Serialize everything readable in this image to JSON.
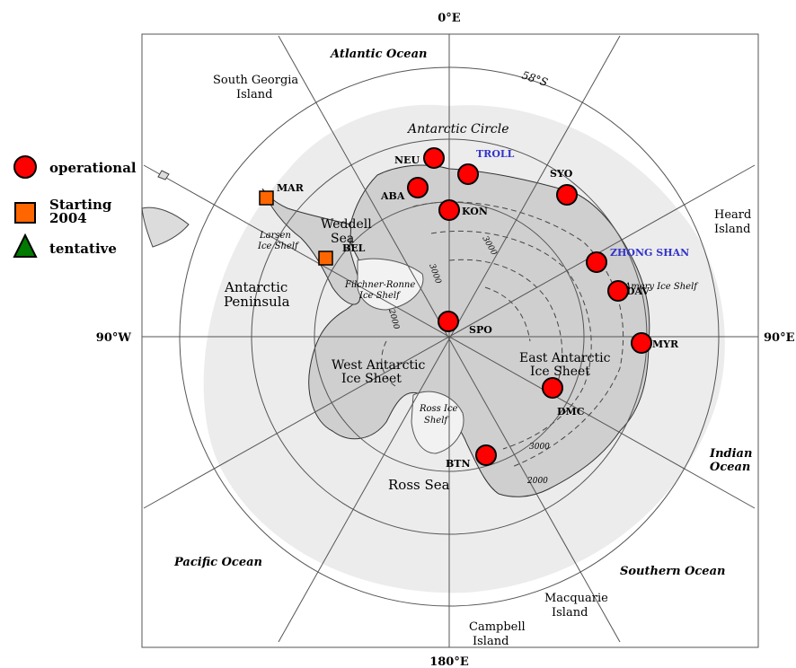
{
  "map": {
    "meridians": {
      "top": "0°E",
      "left": "90°W",
      "right": "90°E",
      "bottom": "180°E"
    },
    "circles": {
      "latitude_label": "58°S",
      "antarctic_circle": "Antarctic Circle"
    },
    "regions": {
      "atlantic": "Atlantic Ocean",
      "south_georgia": "South Georgia",
      "south_georgia_2": "Island",
      "weddell": "Weddell",
      "weddell_2": "Sea",
      "larsen": "Larsen",
      "larsen_2": "Ice Shelf",
      "antarctic_peninsula": "Antarctic",
      "antarctic_peninsula_2": "Peninsula",
      "filchner": "Filchner-Ronne",
      "filchner_2": "Ice Shelf",
      "west_ice": "West Antarctic",
      "west_ice_2": "Ice Sheet",
      "east_ice": "East Antarctic",
      "east_ice_2": "Ice Sheet",
      "ross_ice": "Ross Ice",
      "ross_ice_2": "Shelf",
      "ross_sea": "Ross Sea",
      "pacific": "Pacific Ocean",
      "southern": "Southern Ocean",
      "indian": "Indian",
      "indian_2": "Ocean",
      "heard": "Heard",
      "heard_2": "Island",
      "macquarie": "Macquarie",
      "macquarie_2": "Island",
      "campbell": "Campbell",
      "campbell_2": "Island",
      "amery": "Amery Ice Shelf",
      "contour_a": "3000",
      "contour_b": "3000",
      "contour_c": "2000",
      "contour_d": "3000",
      "contour_e": "2000"
    },
    "stations_operational": [
      {
        "code": "NEU"
      },
      {
        "code": "ABA"
      },
      {
        "code": "KON"
      },
      {
        "code": "SYO"
      },
      {
        "code": "SPO"
      },
      {
        "code": "DAV"
      },
      {
        "code": "MYR"
      },
      {
        "code": "DMC"
      },
      {
        "code": "BTN"
      },
      {
        "code": ""
      },
      {
        "code": ""
      }
    ],
    "stations_starting": [
      {
        "code": "MAR"
      },
      {
        "code": "BEL"
      }
    ],
    "blue_labels": {
      "troll": "TROLL",
      "zhong_shan": "ZHONG SHAN"
    }
  },
  "legend": {
    "operational": "operational",
    "starting": "Starting",
    "starting_2": "2004",
    "tentative": "tentative"
  },
  "colors": {
    "operational": "#ff0000",
    "starting": "#ff6600",
    "tentative": "#007a00",
    "blue_label": "#3333cc",
    "ice": "#c8c8c8",
    "shelf": "#e6e6e6",
    "outline": "#000000"
  }
}
